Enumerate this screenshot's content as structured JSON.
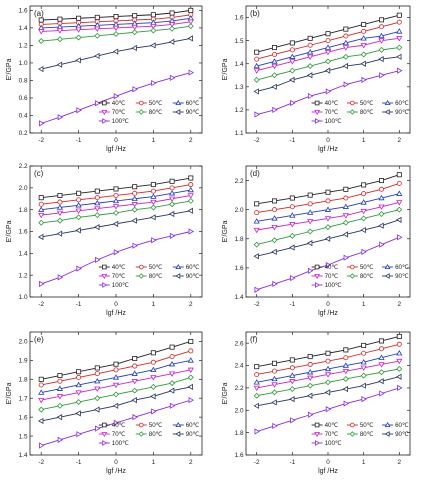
{
  "colors": {
    "40": "#222222",
    "50": "#d62728",
    "60": "#1f3fbf",
    "70": "#cc22cc",
    "80": "#2e9e3a",
    "90": "#27365e",
    "100": "#8a2be2"
  },
  "legend": [
    {
      "key": "40",
      "label": "40℃",
      "marker": "square"
    },
    {
      "key": "50",
      "label": "50℃",
      "marker": "circle"
    },
    {
      "key": "60",
      "label": "60℃",
      "marker": "triangle-up"
    },
    {
      "key": "70",
      "label": "70℃",
      "marker": "triangle-down"
    },
    {
      "key": "80",
      "label": "80℃",
      "marker": "diamond"
    },
    {
      "key": "90",
      "label": "90℃",
      "marker": "triangle-left"
    },
    {
      "key": "100",
      "label": "100℃",
      "marker": "triangle-right"
    }
  ],
  "chart_data": [
    {
      "type": "line",
      "label": "(a)",
      "xlabel": "lgf /Hz",
      "ylabel": "E'/GPa",
      "xlim": [
        -2.3,
        2.3
      ],
      "ylim": [
        0.2,
        1.65
      ],
      "xticks": [
        -2,
        -1,
        0,
        1,
        2
      ],
      "yticks": [
        0.2,
        0.4,
        0.6,
        0.8,
        1.0,
        1.2,
        1.4,
        1.6
      ],
      "x": [
        -2.0,
        -1.5,
        -1.0,
        -0.5,
        0.0,
        0.5,
        1.0,
        1.5,
        2.0
      ],
      "series": [
        {
          "key": "40",
          "name": "40℃",
          "values": [
            1.49,
            1.5,
            1.51,
            1.52,
            1.53,
            1.54,
            1.55,
            1.57,
            1.6
          ]
        },
        {
          "key": "50",
          "name": "50℃",
          "values": [
            1.44,
            1.45,
            1.46,
            1.47,
            1.48,
            1.49,
            1.5,
            1.52,
            1.55
          ]
        },
        {
          "key": "60",
          "name": "60℃",
          "values": [
            1.4,
            1.41,
            1.42,
            1.43,
            1.44,
            1.45,
            1.46,
            1.48,
            1.51
          ]
        },
        {
          "key": "70",
          "name": "70℃",
          "values": [
            1.36,
            1.37,
            1.38,
            1.39,
            1.4,
            1.41,
            1.42,
            1.44,
            1.47
          ]
        },
        {
          "key": "80",
          "name": "80℃",
          "values": [
            1.25,
            1.27,
            1.29,
            1.31,
            1.33,
            1.35,
            1.37,
            1.39,
            1.42
          ]
        },
        {
          "key": "90",
          "name": "90℃",
          "values": [
            0.93,
            0.98,
            1.03,
            1.08,
            1.13,
            1.17,
            1.2,
            1.24,
            1.28
          ]
        },
        {
          "key": "100",
          "name": "100℃",
          "values": [
            0.31,
            0.38,
            0.46,
            0.54,
            0.62,
            0.7,
            0.77,
            0.83,
            0.89
          ]
        }
      ]
    },
    {
      "type": "line",
      "label": "(b)",
      "xlabel": "lgf /Hz",
      "ylabel": "E'/GPa",
      "xlim": [
        -2.3,
        2.3
      ],
      "ylim": [
        1.1,
        1.65
      ],
      "xticks": [
        -2,
        -1,
        0,
        1,
        2
      ],
      "yticks": [
        1.1,
        1.2,
        1.3,
        1.4,
        1.5,
        1.6
      ],
      "x": [
        -2.0,
        -1.5,
        -1.0,
        -0.5,
        0.0,
        0.5,
        1.0,
        1.5,
        2.0
      ],
      "series": [
        {
          "key": "40",
          "name": "40℃",
          "values": [
            1.45,
            1.47,
            1.49,
            1.51,
            1.53,
            1.55,
            1.57,
            1.59,
            1.61
          ]
        },
        {
          "key": "50",
          "name": "50℃",
          "values": [
            1.42,
            1.44,
            1.46,
            1.48,
            1.5,
            1.52,
            1.54,
            1.56,
            1.58
          ]
        },
        {
          "key": "60",
          "name": "60℃",
          "values": [
            1.39,
            1.41,
            1.43,
            1.45,
            1.47,
            1.49,
            1.51,
            1.52,
            1.54
          ]
        },
        {
          "key": "70",
          "name": "70℃",
          "values": [
            1.37,
            1.39,
            1.41,
            1.43,
            1.45,
            1.47,
            1.48,
            1.5,
            1.51
          ]
        },
        {
          "key": "80",
          "name": "80℃",
          "values": [
            1.33,
            1.35,
            1.37,
            1.39,
            1.41,
            1.43,
            1.44,
            1.46,
            1.47
          ]
        },
        {
          "key": "90",
          "name": "90℃",
          "values": [
            1.28,
            1.3,
            1.33,
            1.35,
            1.37,
            1.39,
            1.4,
            1.42,
            1.43
          ]
        },
        {
          "key": "100",
          "name": "100℃",
          "values": [
            1.18,
            1.2,
            1.23,
            1.26,
            1.28,
            1.31,
            1.33,
            1.35,
            1.37
          ]
        }
      ]
    },
    {
      "type": "line",
      "label": "(c)",
      "xlabel": "lgf /Hz",
      "ylabel": "E'/GPa",
      "xlim": [
        -2.3,
        2.3
      ],
      "ylim": [
        1.0,
        2.2
      ],
      "xticks": [
        -2,
        -1,
        0,
        1,
        2
      ],
      "yticks": [
        1.0,
        1.2,
        1.4,
        1.6,
        1.8,
        2.0,
        2.2
      ],
      "x": [
        -2.0,
        -1.5,
        -1.0,
        -0.5,
        0.0,
        0.5,
        1.0,
        1.5,
        2.0
      ],
      "series": [
        {
          "key": "40",
          "name": "40℃",
          "values": [
            1.91,
            1.93,
            1.95,
            1.97,
            1.99,
            2.01,
            2.03,
            2.06,
            2.09
          ]
        },
        {
          "key": "50",
          "name": "50℃",
          "values": [
            1.85,
            1.87,
            1.89,
            1.91,
            1.93,
            1.95,
            1.97,
            2.0,
            2.03
          ]
        },
        {
          "key": "60",
          "name": "60℃",
          "values": [
            1.8,
            1.82,
            1.84,
            1.86,
            1.88,
            1.9,
            1.92,
            1.95,
            1.98
          ]
        },
        {
          "key": "70",
          "name": "70℃",
          "values": [
            1.75,
            1.77,
            1.79,
            1.81,
            1.83,
            1.85,
            1.87,
            1.9,
            1.93
          ]
        },
        {
          "key": "80",
          "name": "80℃",
          "values": [
            1.68,
            1.7,
            1.73,
            1.75,
            1.77,
            1.8,
            1.82,
            1.85,
            1.88
          ]
        },
        {
          "key": "90",
          "name": "90℃",
          "values": [
            1.55,
            1.58,
            1.61,
            1.64,
            1.67,
            1.7,
            1.73,
            1.76,
            1.79
          ]
        },
        {
          "key": "100",
          "name": "100℃",
          "values": [
            1.12,
            1.18,
            1.26,
            1.34,
            1.41,
            1.47,
            1.52,
            1.56,
            1.6
          ]
        }
      ]
    },
    {
      "type": "line",
      "label": "(d)",
      "xlabel": "lgf /Hz",
      "ylabel": "E'/GPa",
      "xlim": [
        -2.3,
        2.3
      ],
      "ylim": [
        1.4,
        2.3
      ],
      "xticks": [
        -2,
        -1,
        0,
        1,
        2
      ],
      "yticks": [
        1.4,
        1.6,
        1.8,
        2.0,
        2.2
      ],
      "x": [
        -2.0,
        -1.5,
        -1.0,
        -0.5,
        0.0,
        0.5,
        1.0,
        1.5,
        2.0
      ],
      "series": [
        {
          "key": "40",
          "name": "40℃",
          "values": [
            2.04,
            2.06,
            2.08,
            2.1,
            2.12,
            2.14,
            2.17,
            2.2,
            2.24
          ]
        },
        {
          "key": "50",
          "name": "50℃",
          "values": [
            1.98,
            2.0,
            2.02,
            2.04,
            2.06,
            2.08,
            2.11,
            2.14,
            2.18
          ]
        },
        {
          "key": "60",
          "name": "60℃",
          "values": [
            1.92,
            1.94,
            1.96,
            1.98,
            2.0,
            2.02,
            2.05,
            2.08,
            2.11
          ]
        },
        {
          "key": "70",
          "name": "70℃",
          "values": [
            1.86,
            1.88,
            1.9,
            1.92,
            1.94,
            1.96,
            1.99,
            2.02,
            2.05
          ]
        },
        {
          "key": "80",
          "name": "80℃",
          "values": [
            1.76,
            1.79,
            1.82,
            1.85,
            1.88,
            1.91,
            1.94,
            1.97,
            2.0
          ]
        },
        {
          "key": "90",
          "name": "90℃",
          "values": [
            1.68,
            1.71,
            1.74,
            1.77,
            1.8,
            1.83,
            1.86,
            1.89,
            1.93
          ]
        },
        {
          "key": "100",
          "name": "100℃",
          "values": [
            1.45,
            1.49,
            1.53,
            1.58,
            1.62,
            1.67,
            1.71,
            1.76,
            1.81
          ]
        }
      ]
    },
    {
      "type": "line",
      "label": "(e)",
      "xlabel": "lgf /Hz",
      "ylabel": "E'/GPa",
      "xlim": [
        -2.3,
        2.3
      ],
      "ylim": [
        1.4,
        2.05
      ],
      "xticks": [
        -2,
        -1,
        0,
        1,
        2
      ],
      "yticks": [
        1.4,
        1.5,
        1.6,
        1.7,
        1.8,
        1.9,
        2.0
      ],
      "x": [
        -2.0,
        -1.5,
        -1.0,
        -0.5,
        0.0,
        0.5,
        1.0,
        1.5,
        2.0
      ],
      "series": [
        {
          "key": "40",
          "name": "40℃",
          "values": [
            1.8,
            1.82,
            1.84,
            1.86,
            1.88,
            1.91,
            1.94,
            1.97,
            2.0
          ]
        },
        {
          "key": "50",
          "name": "50℃",
          "values": [
            1.77,
            1.79,
            1.81,
            1.83,
            1.85,
            1.87,
            1.89,
            1.92,
            1.95
          ]
        },
        {
          "key": "60",
          "name": "60℃",
          "values": [
            1.73,
            1.75,
            1.77,
            1.79,
            1.81,
            1.83,
            1.85,
            1.88,
            1.9
          ]
        },
        {
          "key": "70",
          "name": "70℃",
          "values": [
            1.69,
            1.71,
            1.73,
            1.75,
            1.77,
            1.79,
            1.81,
            1.83,
            1.85
          ]
        },
        {
          "key": "80",
          "name": "80℃",
          "values": [
            1.64,
            1.66,
            1.68,
            1.7,
            1.72,
            1.74,
            1.76,
            1.78,
            1.81
          ]
        },
        {
          "key": "90",
          "name": "90℃",
          "values": [
            1.58,
            1.6,
            1.62,
            1.64,
            1.66,
            1.69,
            1.71,
            1.74,
            1.76
          ]
        },
        {
          "key": "100",
          "name": "100℃",
          "values": [
            1.45,
            1.48,
            1.51,
            1.54,
            1.57,
            1.6,
            1.63,
            1.66,
            1.69
          ]
        }
      ]
    },
    {
      "type": "line",
      "label": "(f)",
      "xlabel": "lgf /Hz",
      "ylabel": "E'/GPa",
      "xlim": [
        -2.3,
        2.3
      ],
      "ylim": [
        1.6,
        2.7
      ],
      "xticks": [
        -2,
        -1,
        0,
        1,
        2
      ],
      "yticks": [
        1.6,
        1.8,
        2.0,
        2.2,
        2.4,
        2.6
      ],
      "x": [
        -2.0,
        -1.5,
        -1.0,
        -0.5,
        0.0,
        0.5,
        1.0,
        1.5,
        2.0
      ],
      "series": [
        {
          "key": "40",
          "name": "40℃",
          "values": [
            2.39,
            2.42,
            2.45,
            2.48,
            2.51,
            2.54,
            2.58,
            2.62,
            2.66
          ]
        },
        {
          "key": "50",
          "name": "50℃",
          "values": [
            2.32,
            2.35,
            2.38,
            2.41,
            2.44,
            2.47,
            2.51,
            2.55,
            2.59
          ]
        },
        {
          "key": "60",
          "name": "60℃",
          "values": [
            2.25,
            2.28,
            2.31,
            2.34,
            2.37,
            2.4,
            2.43,
            2.47,
            2.51
          ]
        },
        {
          "key": "70",
          "name": "70℃",
          "values": [
            2.2,
            2.23,
            2.26,
            2.29,
            2.32,
            2.35,
            2.38,
            2.41,
            2.44
          ]
        },
        {
          "key": "80",
          "name": "80℃",
          "values": [
            2.13,
            2.16,
            2.19,
            2.22,
            2.25,
            2.28,
            2.31,
            2.34,
            2.37
          ]
        },
        {
          "key": "90",
          "name": "90℃",
          "values": [
            2.04,
            2.07,
            2.1,
            2.13,
            2.16,
            2.19,
            2.22,
            2.26,
            2.3
          ]
        },
        {
          "key": "100",
          "name": "100℃",
          "values": [
            1.81,
            1.86,
            1.91,
            1.96,
            2.01,
            2.06,
            2.1,
            2.15,
            2.2
          ]
        }
      ]
    }
  ]
}
